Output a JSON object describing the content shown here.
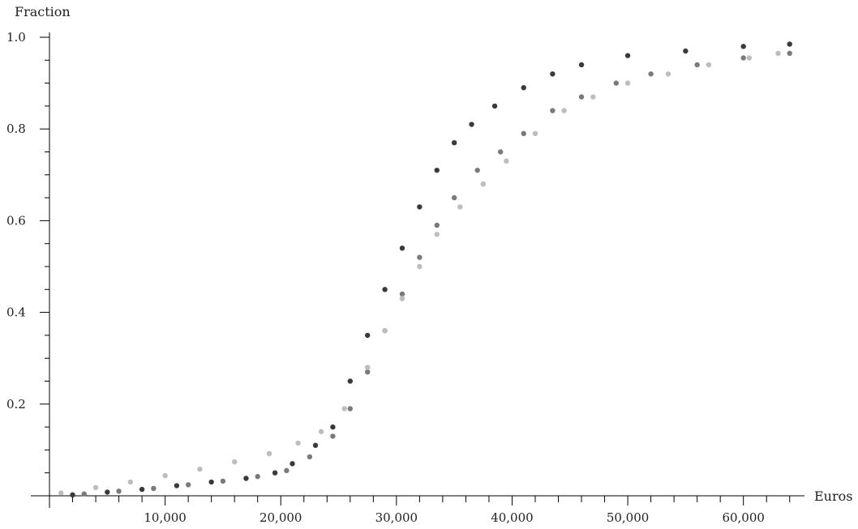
{
  "chart_data": {
    "type": "scatter",
    "title": "",
    "xlabel": "Euros",
    "ylabel": "Fraction",
    "xlim": [
      0,
      65000
    ],
    "ylim": [
      0,
      1.0
    ],
    "x_ticks": [
      10000,
      20000,
      30000,
      40000,
      50000,
      60000
    ],
    "x_tick_labels": [
      "10,000",
      "20,000",
      "30,000",
      "40,000",
      "50,000",
      "60,000"
    ],
    "x_minor_step": 2000,
    "y_ticks": [
      0.2,
      0.4,
      0.6,
      0.8,
      1.0
    ],
    "y_tick_labels": [
      "0.2",
      "0.4",
      "0.6",
      "0.8",
      "1.0"
    ],
    "y_minor_step": 0.05,
    "grid": false,
    "legend": "none",
    "series": [
      {
        "color": "#3a3a3a",
        "points": [
          [
            2000,
            0.002
          ],
          [
            5000,
            0.008
          ],
          [
            8000,
            0.014
          ],
          [
            11000,
            0.022
          ],
          [
            14000,
            0.03
          ],
          [
            17000,
            0.038
          ],
          [
            19500,
            0.05
          ],
          [
            21000,
            0.07
          ],
          [
            23000,
            0.11
          ],
          [
            24500,
            0.15
          ],
          [
            26000,
            0.25
          ],
          [
            27500,
            0.35
          ],
          [
            29000,
            0.45
          ],
          [
            30500,
            0.54
          ],
          [
            32000,
            0.63
          ],
          [
            33500,
            0.71
          ],
          [
            35000,
            0.77
          ],
          [
            36500,
            0.81
          ],
          [
            38500,
            0.85
          ],
          [
            41000,
            0.89
          ],
          [
            43500,
            0.92
          ],
          [
            46000,
            0.94
          ],
          [
            50000,
            0.96
          ],
          [
            55000,
            0.97
          ],
          [
            60000,
            0.98
          ],
          [
            64000,
            0.985
          ]
        ]
      },
      {
        "color": "#7a7a7a",
        "points": [
          [
            3000,
            0.004
          ],
          [
            6000,
            0.01
          ],
          [
            9000,
            0.016
          ],
          [
            12000,
            0.024
          ],
          [
            15000,
            0.032
          ],
          [
            18000,
            0.042
          ],
          [
            20500,
            0.055
          ],
          [
            22500,
            0.085
          ],
          [
            24500,
            0.13
          ],
          [
            26000,
            0.19
          ],
          [
            27500,
            0.27
          ],
          [
            29000,
            0.36
          ],
          [
            30500,
            0.44
          ],
          [
            32000,
            0.52
          ],
          [
            33500,
            0.59
          ],
          [
            35000,
            0.65
          ],
          [
            37000,
            0.71
          ],
          [
            39000,
            0.75
          ],
          [
            41000,
            0.79
          ],
          [
            43500,
            0.84
          ],
          [
            46000,
            0.87
          ],
          [
            49000,
            0.9
          ],
          [
            52000,
            0.92
          ],
          [
            56000,
            0.94
          ],
          [
            60000,
            0.955
          ],
          [
            64000,
            0.965
          ]
        ]
      },
      {
        "color": "#bdbdbd",
        "points": [
          [
            1000,
            0.006
          ],
          [
            4000,
            0.018
          ],
          [
            7000,
            0.03
          ],
          [
            10000,
            0.044
          ],
          [
            13000,
            0.058
          ],
          [
            16000,
            0.074
          ],
          [
            19000,
            0.092
          ],
          [
            21500,
            0.115
          ],
          [
            23500,
            0.14
          ],
          [
            25500,
            0.19
          ],
          [
            27500,
            0.28
          ],
          [
            29000,
            0.36
          ],
          [
            30500,
            0.43
          ],
          [
            32000,
            0.5
          ],
          [
            33500,
            0.57
          ],
          [
            35500,
            0.63
          ],
          [
            37500,
            0.68
          ],
          [
            39500,
            0.73
          ],
          [
            42000,
            0.79
          ],
          [
            44500,
            0.84
          ],
          [
            47000,
            0.87
          ],
          [
            50000,
            0.9
          ],
          [
            53500,
            0.92
          ],
          [
            57000,
            0.94
          ],
          [
            60500,
            0.955
          ],
          [
            63000,
            0.965
          ]
        ]
      }
    ]
  }
}
